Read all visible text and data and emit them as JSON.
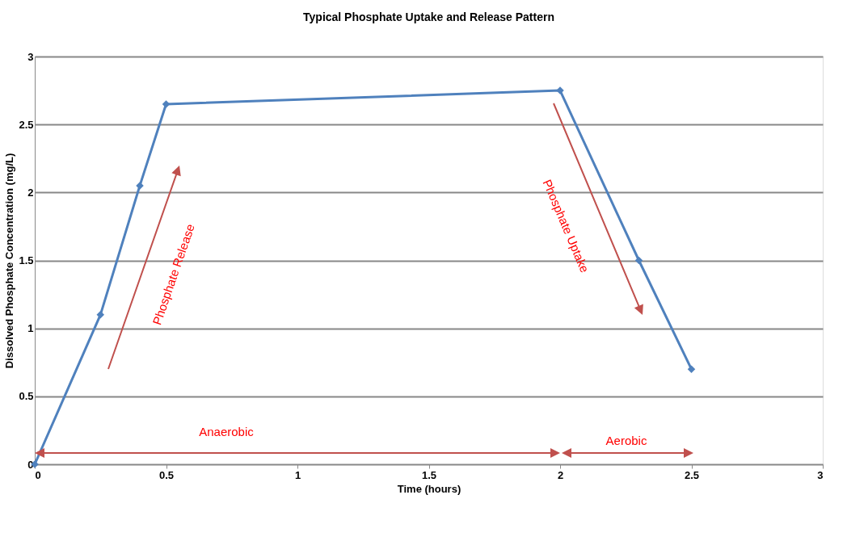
{
  "chart_data": {
    "type": "line",
    "title": "Typical Phosphate Uptake and Release Pattern",
    "xlabel": "Time (hours)",
    "ylabel": "Dissolved Phosphate Concentration (mg/L)",
    "x": [
      0,
      0.25,
      0.4,
      0.5,
      2,
      2.3,
      2.5
    ],
    "series": [
      {
        "color": "#4f81bd",
        "values": [
          0,
          1.1,
          2.05,
          2.65,
          2.75,
          1.5,
          0.7
        ]
      }
    ],
    "xlim": [
      0,
      3
    ],
    "xticks": [
      0,
      0.5,
      1,
      1.5,
      2,
      2.5,
      3
    ],
    "ylim": [
      0,
      3
    ],
    "yticks": [
      0,
      0.5,
      1,
      1.5,
      2,
      2.5,
      3
    ],
    "grid": "y",
    "marker": "diamond",
    "line_style": "solid",
    "annotations": [
      "Phosphate Release",
      "Phosphate Uptake",
      "Anaerobic",
      "Aerobic"
    ]
  }
}
